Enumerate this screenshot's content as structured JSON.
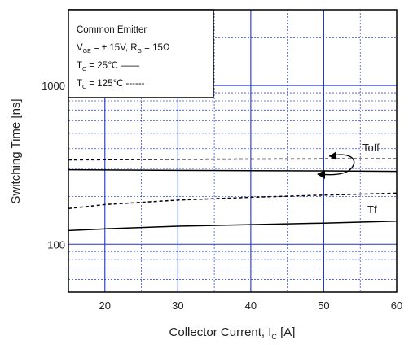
{
  "chart_data": {
    "type": "line",
    "title": "",
    "xlabel": "Collector Current, I",
    "xlabel_sub": "C",
    "xlabel_unit": " [A]",
    "ylabel": "Switching Time [ns]",
    "xlim": [
      15,
      60
    ],
    "ylim": [
      50,
      3000
    ],
    "y_scale": "log",
    "grid": true,
    "x_ticks": [
      20,
      30,
      40,
      50,
      60
    ],
    "x_tick_labels": [
      "20",
      "30",
      "40",
      "50",
      "60"
    ],
    "y_tick_labels": [
      {
        "value": 100,
        "label": "100"
      },
      {
        "value": 1000,
        "label": "1000"
      }
    ],
    "legend": {
      "placement": "top-left",
      "title": "Common Emitter",
      "line1": "V",
      "line1_sub": "GE",
      "line1_rest": " = ±  15V, R",
      "line1_sub2": "G",
      "line1_rest2": " = 15Ω",
      "line2": "T",
      "line2_sub": "C",
      "line2_rest": " =   25℃ ——",
      "line3": "T",
      "line3_sub": "C",
      "line3_rest": " = 125℃ ------"
    },
    "series": [
      {
        "name": "Toff",
        "style": "solid",
        "x": [
          15,
          20,
          30,
          40,
          50,
          60
        ],
        "values": [
          295,
          294,
          292,
          291,
          290,
          288
        ]
      },
      {
        "name": "Toff",
        "style": "dashed",
        "x": [
          15,
          20,
          30,
          40,
          50,
          60
        ],
        "values": [
          340,
          341,
          343,
          344,
          345,
          345
        ]
      },
      {
        "name": "Tf",
        "style": "solid",
        "x": [
          15,
          20,
          30,
          40,
          50,
          60
        ],
        "values": [
          122,
          125,
          130,
          133,
          136,
          140
        ]
      },
      {
        "name": "Tf",
        "style": "dashed",
        "x": [
          15,
          20,
          30,
          40,
          50,
          60
        ],
        "values": [
          168,
          178,
          190,
          198,
          204,
          210
        ]
      }
    ],
    "labels": {
      "toff": "Toff",
      "tf": "Tf"
    }
  }
}
